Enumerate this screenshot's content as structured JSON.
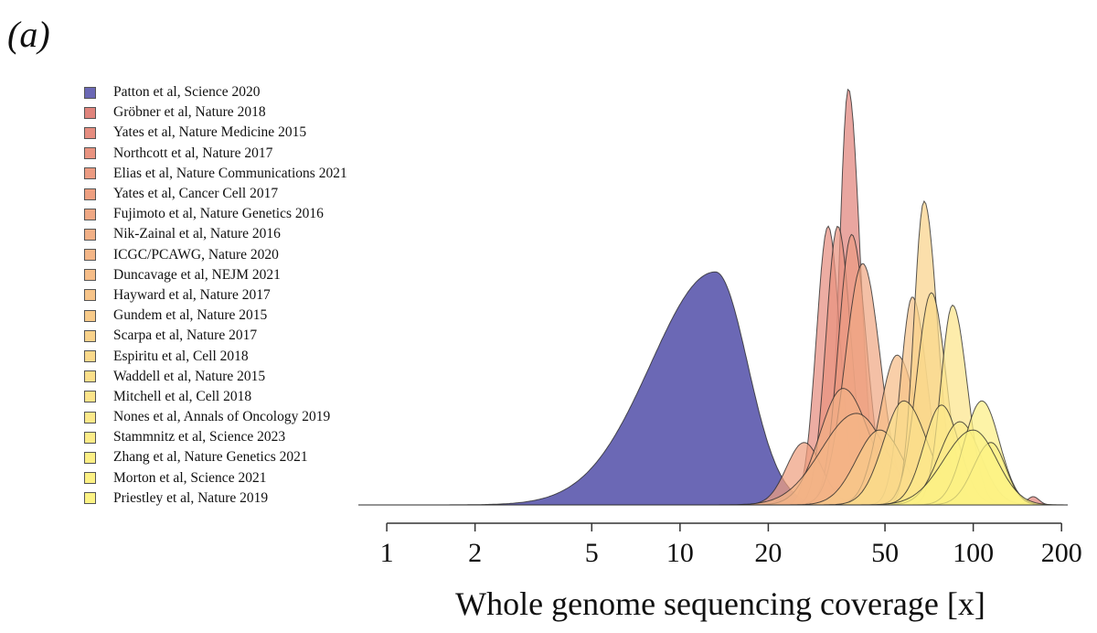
{
  "panel_label": "(a)",
  "chart_data": {
    "type": "area",
    "title": "",
    "xlabel": "Whole genome sequencing coverage [x]",
    "ylabel": "",
    "xscale": "log",
    "xlim": [
      0.8,
      210
    ],
    "xticks": [
      1,
      2,
      5,
      10,
      20,
      50,
      100,
      200
    ],
    "xtick_labels": [
      "1",
      "2",
      "5",
      "10",
      "20",
      "50",
      "100",
      "200"
    ],
    "grid": false,
    "legend_position": "left",
    "series": [
      {
        "name": "Patton et al, Science 2020",
        "color": "#6b68b5",
        "peaks": [
          [
            13.2,
            0.56,
            0.22,
            0.11
          ]
        ]
      },
      {
        "name": "Gröbner et al, Nature 2018",
        "color": "#e0847c",
        "peaks": [
          [
            37.5,
            1.0,
            0.03,
            0.04
          ],
          [
            160,
            0.02,
            0.02,
            0.02
          ]
        ]
      },
      {
        "name": "Yates et al, Nature Medicine 2015",
        "color": "#e68d80",
        "peaks": [
          [
            32.0,
            0.67,
            0.04,
            0.04
          ]
        ]
      },
      {
        "name": "Northcott et al, Nature 2017",
        "color": "#e99380",
        "peaks": [
          [
            34.5,
            0.67,
            0.04,
            0.045
          ]
        ]
      },
      {
        "name": "Elias et al, Nature Communications 2021",
        "color": "#ec9b82",
        "peaks": [
          [
            38.5,
            0.65,
            0.045,
            0.05
          ]
        ]
      },
      {
        "name": "Yates et al, Cancer Cell 2017",
        "color": "#ee9f80",
        "peaks": [
          [
            26.5,
            0.15,
            0.06,
            0.06
          ]
        ]
      },
      {
        "name": "Fujimoto et al, Nature Genetics 2016",
        "color": "#f0a884",
        "peaks": [
          [
            42.0,
            0.58,
            0.06,
            0.06
          ]
        ]
      },
      {
        "name": "Nik-Zainal et al, Nature 2016",
        "color": "#f2b086",
        "peaks": [
          [
            36.0,
            0.28,
            0.08,
            0.09
          ]
        ]
      },
      {
        "name": "ICGC/PCAWG, Nature 2020",
        "color": "#f4b687",
        "peaks": [
          [
            40.0,
            0.22,
            0.12,
            0.1
          ]
        ]
      },
      {
        "name": "Duncavage et al, NEJM 2021",
        "color": "#f6bd88",
        "peaks": [
          [
            55.0,
            0.36,
            0.06,
            0.07
          ]
        ]
      },
      {
        "name": "Hayward et al, Nature 2017",
        "color": "#f7c489",
        "peaks": [
          [
            62.0,
            0.5,
            0.04,
            0.05
          ]
        ]
      },
      {
        "name": "Gundem et al, Nature 2015",
        "color": "#f8cb8a",
        "peaks": [
          [
            48.0,
            0.18,
            0.08,
            0.08
          ]
        ]
      },
      {
        "name": "Scarpa et al, Nature 2017",
        "color": "#f9d28b",
        "peaks": [
          [
            68.0,
            0.73,
            0.035,
            0.045
          ]
        ]
      },
      {
        "name": "Espiritu et al, Cell 2018",
        "color": "#fad98b",
        "peaks": [
          [
            72.0,
            0.51,
            0.05,
            0.05
          ]
        ]
      },
      {
        "name": "Waddell et al, Nature 2015",
        "color": "#fbdf8a",
        "peaks": [
          [
            58.0,
            0.25,
            0.07,
            0.08
          ]
        ]
      },
      {
        "name": "Mitchell et al, Cell 2018",
        "color": "#fce48a",
        "peaks": [
          [
            85.0,
            0.48,
            0.04,
            0.05
          ]
        ]
      },
      {
        "name": "Nones et al, Annals of Oncology 2019",
        "color": "#fce98a",
        "peaks": [
          [
            78.0,
            0.24,
            0.06,
            0.06
          ]
        ]
      },
      {
        "name": "Stammnitz et al, Science 2023",
        "color": "#fcec88",
        "peaks": [
          [
            90.0,
            0.2,
            0.07,
            0.07
          ]
        ]
      },
      {
        "name": "Zhang et al, Nature Genetics 2021",
        "color": "#fcef85",
        "peaks": [
          [
            107.0,
            0.25,
            0.06,
            0.06
          ]
        ]
      },
      {
        "name": "Morton et al, Science 2021",
        "color": "#fcf184",
        "peaks": [
          [
            115.0,
            0.15,
            0.06,
            0.05
          ]
        ]
      },
      {
        "name": "Priestley et al, Nature 2019",
        "color": "#fcf384",
        "peaks": [
          [
            100.0,
            0.18,
            0.1,
            0.08
          ]
        ]
      }
    ]
  }
}
